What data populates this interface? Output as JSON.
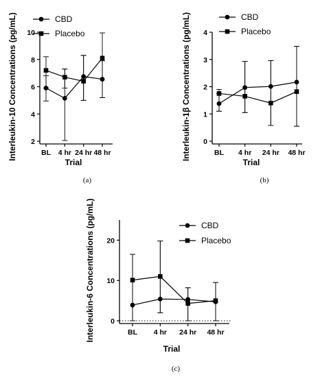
{
  "chart_data": [
    {
      "type": "line",
      "caption": "(a)",
      "xlabel": "Trial",
      "ylabel": "Interleukin-10 Concentrations (pg/mL)",
      "categories": [
        "BL",
        "4 hr",
        "24 hr",
        "48 hr"
      ],
      "ylim": [
        2,
        10
      ],
      "yticks": [
        2,
        4,
        6,
        8,
        10
      ],
      "legend_position": "top-left",
      "series": [
        {
          "name": "CBD",
          "marker": "circle",
          "values": [
            5.9,
            5.15,
            6.75,
            6.55
          ],
          "err_low": [
            4.95,
            2.05,
            5.0,
            5.2
          ],
          "err_high": [
            6.8,
            7.3,
            8.3,
            7.9
          ]
        },
        {
          "name": "Placebo",
          "marker": "square",
          "values": [
            7.2,
            6.7,
            6.4,
            8.1
          ],
          "err_low": [
            5.9,
            5.9,
            5.0,
            5.2
          ],
          "err_high": [
            8.2,
            7.3,
            8.3,
            9.95
          ]
        }
      ]
    },
    {
      "type": "line",
      "caption": "(b)",
      "xlabel": "Trial",
      "ylabel": "Interleukin-1β Concentrations (pg/mL)",
      "categories": [
        "BL",
        "4 hr",
        "24 hr",
        "48 hr"
      ],
      "ylim": [
        0,
        4
      ],
      "yticks": [
        0,
        1,
        2,
        3,
        4
      ],
      "legend_position": "top-left",
      "series": [
        {
          "name": "CBD",
          "marker": "circle",
          "values": [
            1.38,
            1.97,
            2.01,
            2.17
          ],
          "err_low": [
            1.1,
            1.05,
            0.58,
            0.55
          ],
          "err_high": [
            1.75,
            2.93,
            2.96,
            3.48
          ]
        },
        {
          "name": "Placebo",
          "marker": "square",
          "values": [
            1.75,
            1.65,
            1.4,
            1.82
          ],
          "err_low": [
            1.1,
            1.05,
            0.58,
            0.55
          ],
          "err_high": [
            1.9,
            2.93,
            2.96,
            3.48
          ]
        }
      ]
    },
    {
      "type": "line",
      "caption": "(c)",
      "xlabel": "Trial",
      "ylabel": "Interleukin-6 Concentrations (pg/mL)",
      "categories": [
        "BL",
        "4 hr",
        "24 hr",
        "48 hr"
      ],
      "ylim": [
        0,
        25
      ],
      "yticks": [
        0,
        10,
        20
      ],
      "legend_position": "top-right",
      "series": [
        {
          "name": "CBD",
          "marker": "circle",
          "values": [
            3.9,
            5.4,
            5.3,
            4.7
          ],
          "err_low": [
            0,
            2.0,
            0,
            0
          ],
          "err_high": [
            16.5,
            19.8,
            8.2,
            9.5
          ]
        },
        {
          "name": "Placebo",
          "marker": "square",
          "values": [
            10.1,
            11.0,
            4.3,
            5.0
          ],
          "err_low": [
            0,
            2.0,
            0,
            0
          ],
          "err_high": [
            16.5,
            19.8,
            8.2,
            9.5
          ]
        }
      ]
    }
  ]
}
